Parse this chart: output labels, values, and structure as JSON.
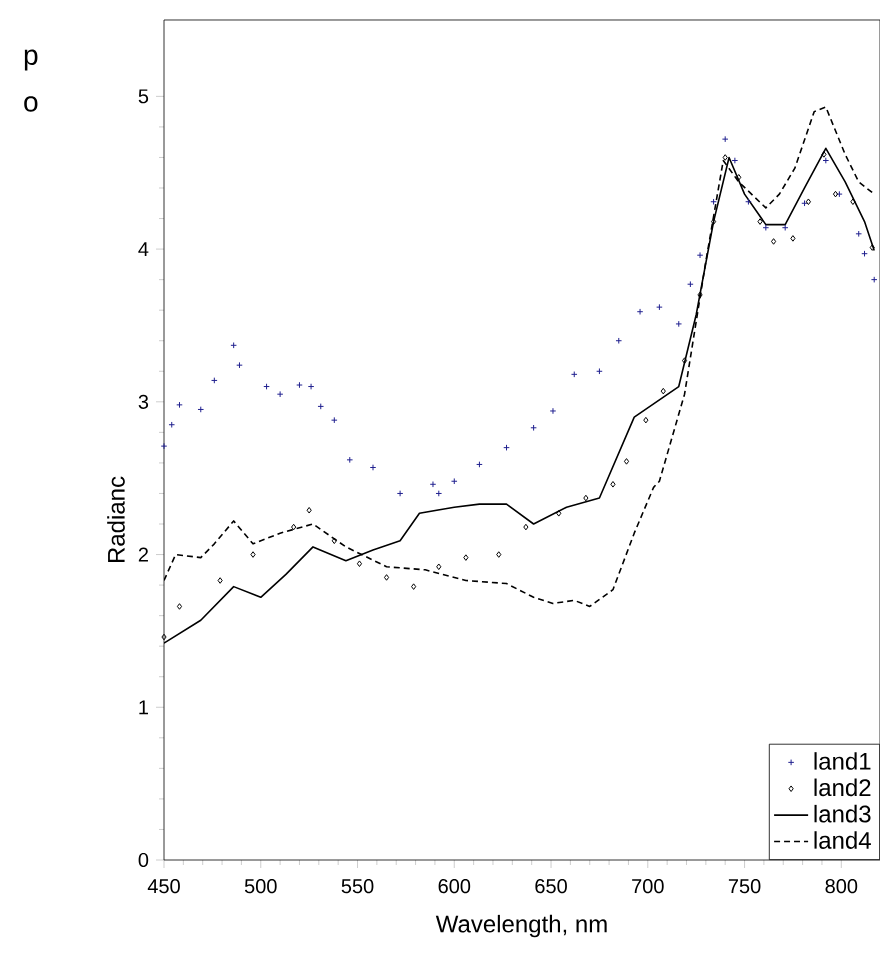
{
  "chart_data": {
    "type": "line",
    "xlabel": "Wavelength, nm",
    "ylabel": "Radianc",
    "annotations": [
      "p",
      "o"
    ],
    "xlim": [
      450,
      820
    ],
    "xticks": [
      450,
      500,
      550,
      600,
      650,
      700,
      750,
      800
    ],
    "ylim": [
      0,
      5.5
    ],
    "yticks": [
      0,
      1,
      2,
      3,
      4,
      5
    ],
    "grid": false,
    "legend": "bottom right",
    "series": [
      {
        "name": "land1",
        "type": "scatter",
        "marker": "cross",
        "color": "#1f1f8f",
        "x": [
          450,
          454,
          458,
          469,
          476,
          486,
          489,
          503,
          510,
          520,
          526,
          531,
          538,
          546,
          558,
          572,
          589,
          592,
          600,
          613,
          627,
          641,
          651,
          662,
          675,
          685,
          696,
          706,
          716,
          722,
          727,
          734,
          740,
          745,
          752,
          761,
          771,
          781,
          792,
          799,
          809,
          812,
          817
        ],
        "values": [
          2.71,
          2.85,
          2.98,
          2.95,
          3.14,
          3.37,
          3.24,
          3.1,
          3.05,
          3.11,
          3.1,
          2.97,
          2.88,
          2.62,
          2.57,
          2.4,
          2.46,
          2.4,
          2.48,
          2.59,
          2.7,
          2.83,
          2.94,
          3.18,
          3.2,
          3.4,
          3.59,
          3.62,
          3.51,
          3.77,
          3.96,
          4.31,
          4.72,
          4.58,
          4.31,
          4.14,
          4.14,
          4.3,
          4.58,
          4.36,
          4.1,
          3.97,
          3.8
        ]
      },
      {
        "name": "land2",
        "type": "scatter",
        "marker": "diamond",
        "color": "#000000",
        "x": [
          450,
          458,
          479,
          496,
          517,
          525,
          538,
          551,
          565,
          579,
          592,
          606,
          623,
          637,
          654,
          668,
          682,
          689,
          699,
          708,
          719,
          727,
          734,
          740,
          747,
          758,
          765,
          775,
          783,
          791,
          797,
          806,
          816
        ],
        "values": [
          1.46,
          1.66,
          1.83,
          2.0,
          2.18,
          2.29,
          2.09,
          1.94,
          1.85,
          1.79,
          1.92,
          1.98,
          2.0,
          2.18,
          2.27,
          2.37,
          2.46,
          2.61,
          2.88,
          3.07,
          3.27,
          3.7,
          4.18,
          4.6,
          4.47,
          4.18,
          4.05,
          4.07,
          4.31,
          4.62,
          4.36,
          4.31,
          4.01
        ]
      },
      {
        "name": "land3",
        "line_style": "solid",
        "color": "#000000",
        "x": [
          450,
          469,
          486,
          500,
          513,
          527,
          544,
          558,
          572,
          582,
          600,
          613,
          627,
          641,
          658,
          675,
          693,
          716,
          725,
          734,
          742,
          750,
          761,
          771,
          781,
          792,
          802,
          812,
          817
        ],
        "values": [
          1.42,
          1.57,
          1.79,
          1.72,
          1.87,
          2.05,
          1.96,
          2.03,
          2.09,
          2.27,
          2.31,
          2.33,
          2.33,
          2.2,
          2.31,
          2.37,
          2.9,
          3.1,
          3.57,
          4.18,
          4.6,
          4.36,
          4.16,
          4.16,
          4.4,
          4.66,
          4.44,
          4.18,
          3.99
        ]
      },
      {
        "name": "land4",
        "line_style": "dashed",
        "color": "#000000",
        "x": [
          450,
          456,
          469,
          476,
          486,
          496,
          510,
          527,
          544,
          565,
          585,
          606,
          627,
          641,
          651,
          662,
          670,
          682,
          693,
          703,
          706,
          719,
          730,
          739,
          747,
          761,
          768,
          776,
          786,
          792,
          802,
          809,
          817
        ],
        "values": [
          1.83,
          2.0,
          1.98,
          2.07,
          2.22,
          2.07,
          2.14,
          2.2,
          2.05,
          1.92,
          1.9,
          1.83,
          1.81,
          1.72,
          1.68,
          1.7,
          1.66,
          1.77,
          2.14,
          2.44,
          2.48,
          3.05,
          3.92,
          4.58,
          4.44,
          4.27,
          4.36,
          4.53,
          4.9,
          4.93,
          4.62,
          4.44,
          4.36
        ]
      }
    ]
  }
}
